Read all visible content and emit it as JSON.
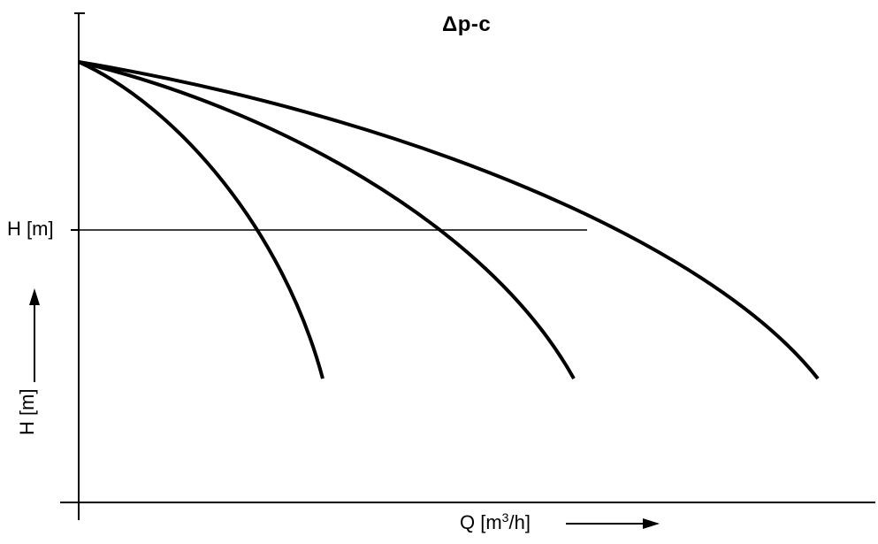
{
  "title": "Δp-c",
  "axes": {
    "h_reference_label": "H [m]",
    "y_label": "H [m]",
    "x_label_prefix": "Q [m",
    "x_label_sup": "3",
    "x_label_suffix": "/h]"
  },
  "curves": {
    "count": 3,
    "style": "downward parabolic pump curves from a common shut-off head"
  },
  "colors": {
    "line": "#000000",
    "background": "#ffffff"
  }
}
